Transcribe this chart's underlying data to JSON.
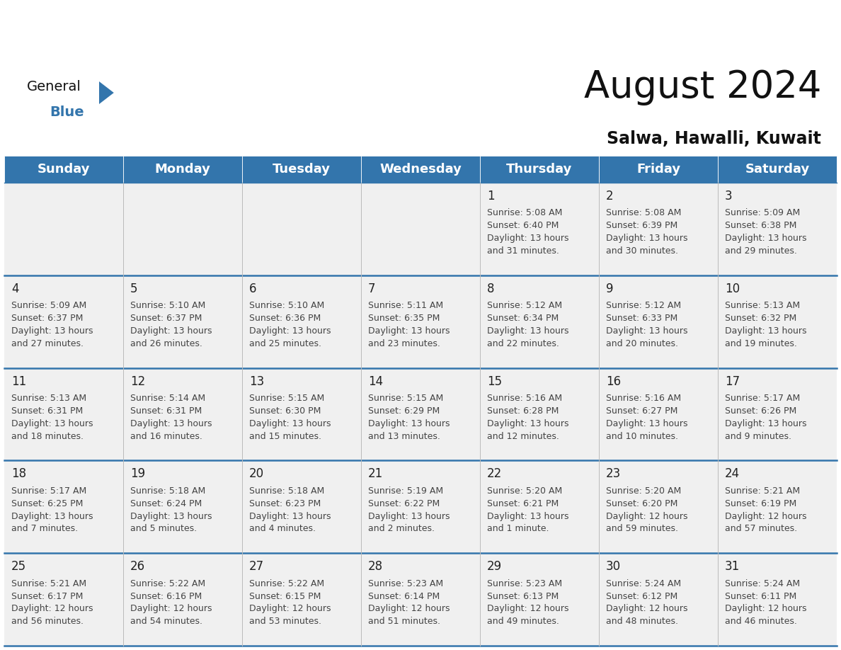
{
  "title": "August 2024",
  "subtitle": "Salwa, Hawalli, Kuwait",
  "header_color": "#3375AC",
  "header_text_color": "#FFFFFF",
  "background_color": "#FFFFFF",
  "cell_bg_even": "#F0F0F0",
  "cell_bg_odd": "#FFFFFF",
  "day_names": [
    "Sunday",
    "Monday",
    "Tuesday",
    "Wednesday",
    "Thursday",
    "Friday",
    "Saturday"
  ],
  "title_fontsize": 38,
  "subtitle_fontsize": 17,
  "header_fontsize": 13,
  "cell_number_fontsize": 12,
  "cell_text_fontsize": 9,
  "days": [
    {
      "day": 1,
      "col": 4,
      "row": 0,
      "sunrise": "5:08 AM",
      "sunset": "6:40 PM",
      "daylight_h": "13 hours",
      "daylight_m": "and 31 minutes."
    },
    {
      "day": 2,
      "col": 5,
      "row": 0,
      "sunrise": "5:08 AM",
      "sunset": "6:39 PM",
      "daylight_h": "13 hours",
      "daylight_m": "and 30 minutes."
    },
    {
      "day": 3,
      "col": 6,
      "row": 0,
      "sunrise": "5:09 AM",
      "sunset": "6:38 PM",
      "daylight_h": "13 hours",
      "daylight_m": "and 29 minutes."
    },
    {
      "day": 4,
      "col": 0,
      "row": 1,
      "sunrise": "5:09 AM",
      "sunset": "6:37 PM",
      "daylight_h": "13 hours",
      "daylight_m": "and 27 minutes."
    },
    {
      "day": 5,
      "col": 1,
      "row": 1,
      "sunrise": "5:10 AM",
      "sunset": "6:37 PM",
      "daylight_h": "13 hours",
      "daylight_m": "and 26 minutes."
    },
    {
      "day": 6,
      "col": 2,
      "row": 1,
      "sunrise": "5:10 AM",
      "sunset": "6:36 PM",
      "daylight_h": "13 hours",
      "daylight_m": "and 25 minutes."
    },
    {
      "day": 7,
      "col": 3,
      "row": 1,
      "sunrise": "5:11 AM",
      "sunset": "6:35 PM",
      "daylight_h": "13 hours",
      "daylight_m": "and 23 minutes."
    },
    {
      "day": 8,
      "col": 4,
      "row": 1,
      "sunrise": "5:12 AM",
      "sunset": "6:34 PM",
      "daylight_h": "13 hours",
      "daylight_m": "and 22 minutes."
    },
    {
      "day": 9,
      "col": 5,
      "row": 1,
      "sunrise": "5:12 AM",
      "sunset": "6:33 PM",
      "daylight_h": "13 hours",
      "daylight_m": "and 20 minutes."
    },
    {
      "day": 10,
      "col": 6,
      "row": 1,
      "sunrise": "5:13 AM",
      "sunset": "6:32 PM",
      "daylight_h": "13 hours",
      "daylight_m": "and 19 minutes."
    },
    {
      "day": 11,
      "col": 0,
      "row": 2,
      "sunrise": "5:13 AM",
      "sunset": "6:31 PM",
      "daylight_h": "13 hours",
      "daylight_m": "and 18 minutes."
    },
    {
      "day": 12,
      "col": 1,
      "row": 2,
      "sunrise": "5:14 AM",
      "sunset": "6:31 PM",
      "daylight_h": "13 hours",
      "daylight_m": "and 16 minutes."
    },
    {
      "day": 13,
      "col": 2,
      "row": 2,
      "sunrise": "5:15 AM",
      "sunset": "6:30 PM",
      "daylight_h": "13 hours",
      "daylight_m": "and 15 minutes."
    },
    {
      "day": 14,
      "col": 3,
      "row": 2,
      "sunrise": "5:15 AM",
      "sunset": "6:29 PM",
      "daylight_h": "13 hours",
      "daylight_m": "and 13 minutes."
    },
    {
      "day": 15,
      "col": 4,
      "row": 2,
      "sunrise": "5:16 AM",
      "sunset": "6:28 PM",
      "daylight_h": "13 hours",
      "daylight_m": "and 12 minutes."
    },
    {
      "day": 16,
      "col": 5,
      "row": 2,
      "sunrise": "5:16 AM",
      "sunset": "6:27 PM",
      "daylight_h": "13 hours",
      "daylight_m": "and 10 minutes."
    },
    {
      "day": 17,
      "col": 6,
      "row": 2,
      "sunrise": "5:17 AM",
      "sunset": "6:26 PM",
      "daylight_h": "13 hours",
      "daylight_m": "and 9 minutes."
    },
    {
      "day": 18,
      "col": 0,
      "row": 3,
      "sunrise": "5:17 AM",
      "sunset": "6:25 PM",
      "daylight_h": "13 hours",
      "daylight_m": "and 7 minutes."
    },
    {
      "day": 19,
      "col": 1,
      "row": 3,
      "sunrise": "5:18 AM",
      "sunset": "6:24 PM",
      "daylight_h": "13 hours",
      "daylight_m": "and 5 minutes."
    },
    {
      "day": 20,
      "col": 2,
      "row": 3,
      "sunrise": "5:18 AM",
      "sunset": "6:23 PM",
      "daylight_h": "13 hours",
      "daylight_m": "and 4 minutes."
    },
    {
      "day": 21,
      "col": 3,
      "row": 3,
      "sunrise": "5:19 AM",
      "sunset": "6:22 PM",
      "daylight_h": "13 hours",
      "daylight_m": "and 2 minutes."
    },
    {
      "day": 22,
      "col": 4,
      "row": 3,
      "sunrise": "5:20 AM",
      "sunset": "6:21 PM",
      "daylight_h": "13 hours",
      "daylight_m": "and 1 minute."
    },
    {
      "day": 23,
      "col": 5,
      "row": 3,
      "sunrise": "5:20 AM",
      "sunset": "6:20 PM",
      "daylight_h": "12 hours",
      "daylight_m": "and 59 minutes."
    },
    {
      "day": 24,
      "col": 6,
      "row": 3,
      "sunrise": "5:21 AM",
      "sunset": "6:19 PM",
      "daylight_h": "12 hours",
      "daylight_m": "and 57 minutes."
    },
    {
      "day": 25,
      "col": 0,
      "row": 4,
      "sunrise": "5:21 AM",
      "sunset": "6:17 PM",
      "daylight_h": "12 hours",
      "daylight_m": "and 56 minutes."
    },
    {
      "day": 26,
      "col": 1,
      "row": 4,
      "sunrise": "5:22 AM",
      "sunset": "6:16 PM",
      "daylight_h": "12 hours",
      "daylight_m": "and 54 minutes."
    },
    {
      "day": 27,
      "col": 2,
      "row": 4,
      "sunrise": "5:22 AM",
      "sunset": "6:15 PM",
      "daylight_h": "12 hours",
      "daylight_m": "and 53 minutes."
    },
    {
      "day": 28,
      "col": 3,
      "row": 4,
      "sunrise": "5:23 AM",
      "sunset": "6:14 PM",
      "daylight_h": "12 hours",
      "daylight_m": "and 51 minutes."
    },
    {
      "day": 29,
      "col": 4,
      "row": 4,
      "sunrise": "5:23 AM",
      "sunset": "6:13 PM",
      "daylight_h": "12 hours",
      "daylight_m": "and 49 minutes."
    },
    {
      "day": 30,
      "col": 5,
      "row": 4,
      "sunrise": "5:24 AM",
      "sunset": "6:12 PM",
      "daylight_h": "12 hours",
      "daylight_m": "and 48 minutes."
    },
    {
      "day": 31,
      "col": 6,
      "row": 4,
      "sunrise": "5:24 AM",
      "sunset": "6:11 PM",
      "daylight_h": "12 hours",
      "daylight_m": "and 46 minutes."
    }
  ]
}
